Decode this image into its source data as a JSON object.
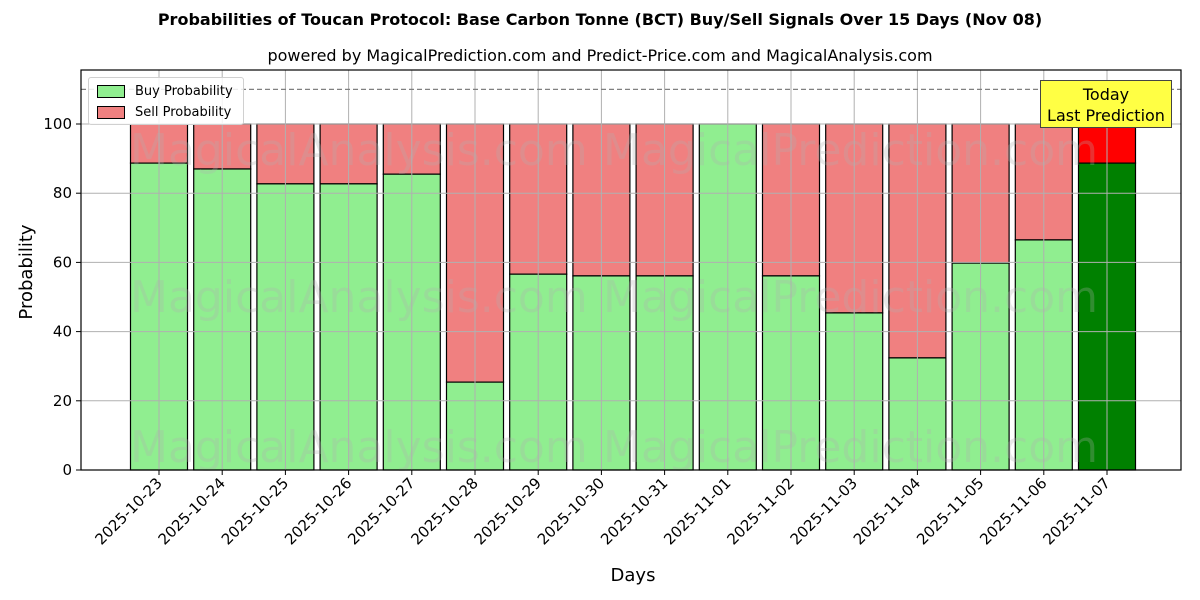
{
  "chart_data": {
    "type": "bar",
    "stacked": true,
    "title": "Probabilities of Toucan Protocol: Base Carbon Tonne (BCT) Buy/Sell Signals Over 15 Days (Nov 08)",
    "subtitle": "powered by MagicalPrediction.com and Predict-Price.com and MagicalAnalysis.com",
    "xlabel": "Days",
    "ylabel": "Probability",
    "ylim": [
      0,
      115
    ],
    "yticks": [
      0,
      20,
      40,
      60,
      80,
      100
    ],
    "grid": true,
    "legend_position": "upper left",
    "reference_line": {
      "y": 110,
      "style": "dashed",
      "color": "#808080"
    },
    "categories": [
      "2025-10-23",
      "2025-10-24",
      "2025-10-25",
      "2025-10-26",
      "2025-10-27",
      "2025-10-28",
      "2025-10-29",
      "2025-10-30",
      "2025-10-31",
      "2025-11-01",
      "2025-11-02",
      "2025-11-03",
      "2025-11-04",
      "2025-11-05",
      "2025-11-06",
      "2025-11-07"
    ],
    "series": [
      {
        "name": "Buy Probability",
        "color": "#90ee90",
        "values": [
          88.7,
          87.0,
          82.7,
          82.7,
          85.5,
          25.4,
          56.6,
          56.1,
          56.1,
          100.0,
          56.1,
          45.4,
          32.4,
          59.8,
          66.5,
          88.7
        ]
      },
      {
        "name": "Sell Probability",
        "color": "#f08080",
        "values": [
          11.3,
          13.0,
          17.3,
          17.3,
          14.5,
          74.6,
          43.4,
          43.9,
          43.9,
          0.0,
          43.9,
          54.6,
          67.6,
          40.2,
          33.5,
          11.3
        ]
      }
    ],
    "highlight": {
      "index": 15,
      "buy_color": "#008000",
      "sell_color": "#ff0000",
      "annotation": [
        "Today",
        "Last Prediction"
      ],
      "annotation_bg": "#ffff44"
    },
    "watermarks": [
      "MagicalAnalysis.com",
      "MagicalPrediction.com"
    ]
  },
  "legend": {
    "buy_label": "Buy Probability",
    "sell_label": "Sell Probability"
  },
  "annotation": {
    "line1": "Today",
    "line2": "Last Prediction"
  }
}
